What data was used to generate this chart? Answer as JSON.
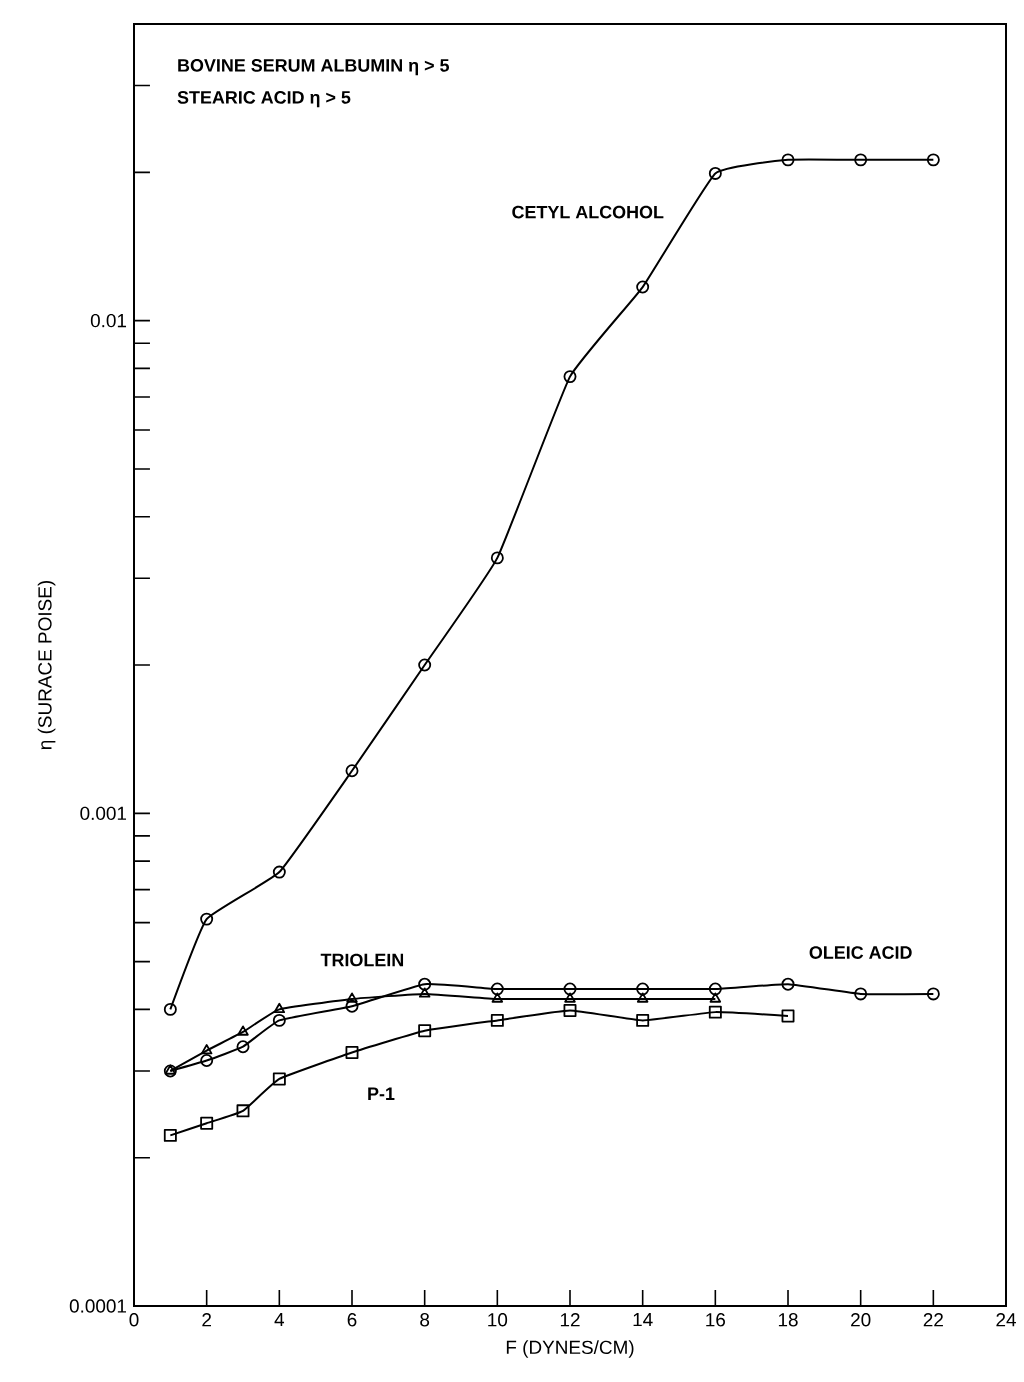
{
  "chart_data": {
    "type": "line",
    "xlabel": "F (DYNES/CM)",
    "ylabel": "η (SURACE POISE)",
    "log": "y",
    "xlim": [
      0,
      24
    ],
    "xticks": [
      0,
      2,
      4,
      6,
      8,
      10,
      12,
      14,
      16,
      18,
      20,
      22,
      24
    ],
    "ylim": [
      0.0001,
      0.04
    ],
    "yticks": [
      {
        "value": 0.0001,
        "label": "0.0001"
      },
      {
        "value": 0.0002,
        "label": null
      },
      {
        "value": 0.0003,
        "label": null
      },
      {
        "value": 0.0004,
        "label": null
      },
      {
        "value": 0.0005,
        "label": null
      },
      {
        "value": 0.0006,
        "label": null
      },
      {
        "value": 0.0007,
        "label": null
      },
      {
        "value": 0.0008,
        "label": null
      },
      {
        "value": 0.0009,
        "label": null
      },
      {
        "value": 0.001,
        "label": "0.001"
      },
      {
        "value": 0.002,
        "label": null
      },
      {
        "value": 0.003,
        "label": null
      },
      {
        "value": 0.004,
        "label": null
      },
      {
        "value": 0.005,
        "label": null
      },
      {
        "value": 0.006,
        "label": null
      },
      {
        "value": 0.007,
        "label": null
      },
      {
        "value": 0.008,
        "label": null
      },
      {
        "value": 0.009,
        "label": null
      },
      {
        "value": 0.01,
        "label": "0.01"
      },
      {
        "value": 0.02,
        "label": null
      },
      {
        "value": 0.03,
        "label": null
      }
    ],
    "series": [
      {
        "color": "#000000",
        "marker": "circle",
        "x": [
          1,
          2,
          4,
          6,
          8,
          10,
          12,
          14,
          16,
          18,
          20,
          22
        ],
        "values": [
          0.0004,
          0.00061,
          0.00076,
          0.00122,
          0.002,
          0.0033,
          0.0077,
          0.0117,
          0.0199,
          0.0212,
          0.0212,
          0.0212
        ]
      },
      {
        "color": "#000000",
        "marker": "triangle",
        "x": [
          1,
          2,
          3,
          4,
          6,
          8,
          10,
          12,
          14,
          16
        ],
        "values": [
          0.0003,
          0.00033,
          0.00036,
          0.0004,
          0.00042,
          0.00043,
          0.00042,
          0.00042,
          0.00042,
          0.00042
        ]
      },
      {
        "color": "#000000",
        "marker": "circle",
        "x": [
          1,
          2,
          3,
          4,
          6,
          8,
          10,
          12,
          14,
          16,
          18,
          20,
          22
        ],
        "values": [
          0.0003,
          0.000315,
          0.000336,
          0.00038,
          0.000406,
          0.00045,
          0.00044,
          0.00044,
          0.00044,
          0.00044,
          0.00045,
          0.00043,
          0.00043
        ]
      },
      {
        "color": "#000000",
        "marker": "square",
        "x": [
          1,
          2,
          3,
          4,
          6,
          8,
          10,
          12,
          14,
          16,
          18
        ],
        "values": [
          0.000222,
          0.000235,
          0.000249,
          0.000289,
          0.000327,
          0.000362,
          0.00038,
          0.000398,
          0.00038,
          0.000395,
          0.000388
        ]
      }
    ],
    "annotations": [
      "BOVINE SERUM ALBUMIN η > 5",
      "STEARIC ACID η > 5",
      {
        "text": "CETYL ALCOHOL",
        "x": 15,
        "y": 0.016
      },
      {
        "text": "OLEIC ACID",
        "x": 20,
        "y": 0.00043
      },
      {
        "text": "TRIOLEIN",
        "x": 4.5,
        "y": 0.0004
      },
      {
        "text": "P-1",
        "x": 6,
        "y": 0.000327
      }
    ]
  }
}
